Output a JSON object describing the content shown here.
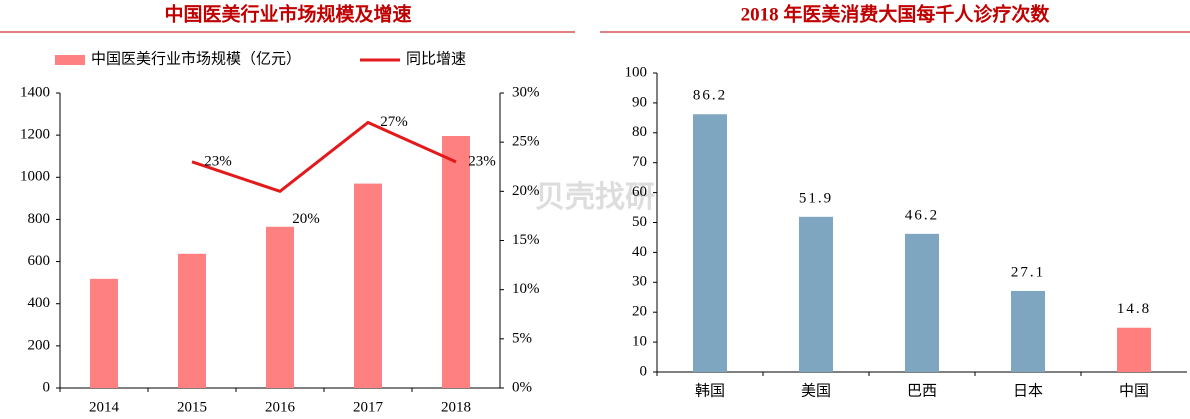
{
  "chart_data": [
    {
      "type": "combo",
      "title": "中国医美行业市场规模及增速",
      "categories": [
        "2014",
        "2015",
        "2016",
        "2017",
        "2018"
      ],
      "series": [
        {
          "name": "中国医美行业市场规模（亿元）",
          "type": "bar",
          "color": "#ff8080",
          "values": [
            518,
            637,
            765,
            970,
            1196
          ]
        },
        {
          "name": "同比增速",
          "type": "line",
          "axis": "y2",
          "color": "#e31a1c",
          "values": [
            null,
            23,
            20,
            27,
            23
          ],
          "value_labels": [
            null,
            "23%",
            "20%",
            "27%",
            "23%"
          ]
        }
      ],
      "ylim": [
        0,
        1400
      ],
      "yticks": [
        0,
        200,
        400,
        600,
        800,
        1000,
        1200,
        1400
      ],
      "y2lim": [
        0,
        30
      ],
      "y2ticks": [
        {
          "value": 0,
          "label": "0%"
        },
        {
          "value": 5,
          "label": "5%"
        },
        {
          "value": 10,
          "label": "10%"
        },
        {
          "value": 15,
          "label": "15%"
        },
        {
          "value": 20,
          "label": "20%"
        },
        {
          "value": 25,
          "label": "25%"
        },
        {
          "value": 30,
          "label": "30%"
        }
      ],
      "watermark": "贝壳找研"
    },
    {
      "type": "bar",
      "title": "2018 年医美消费大国每千人诊疗次数",
      "categories": [
        "韩国",
        "美国",
        "巴西",
        "日本",
        "中国"
      ],
      "values": [
        86.2,
        51.9,
        46.2,
        27.1,
        14.8
      ],
      "colors": [
        "#7fa6c0",
        "#7fa6c0",
        "#7fa6c0",
        "#7fa6c0",
        "#ff7f7f"
      ],
      "ylim": [
        0,
        100
      ],
      "yticks": [
        0,
        10,
        20,
        30,
        40,
        50,
        60,
        70,
        80,
        90,
        100
      ]
    }
  ]
}
